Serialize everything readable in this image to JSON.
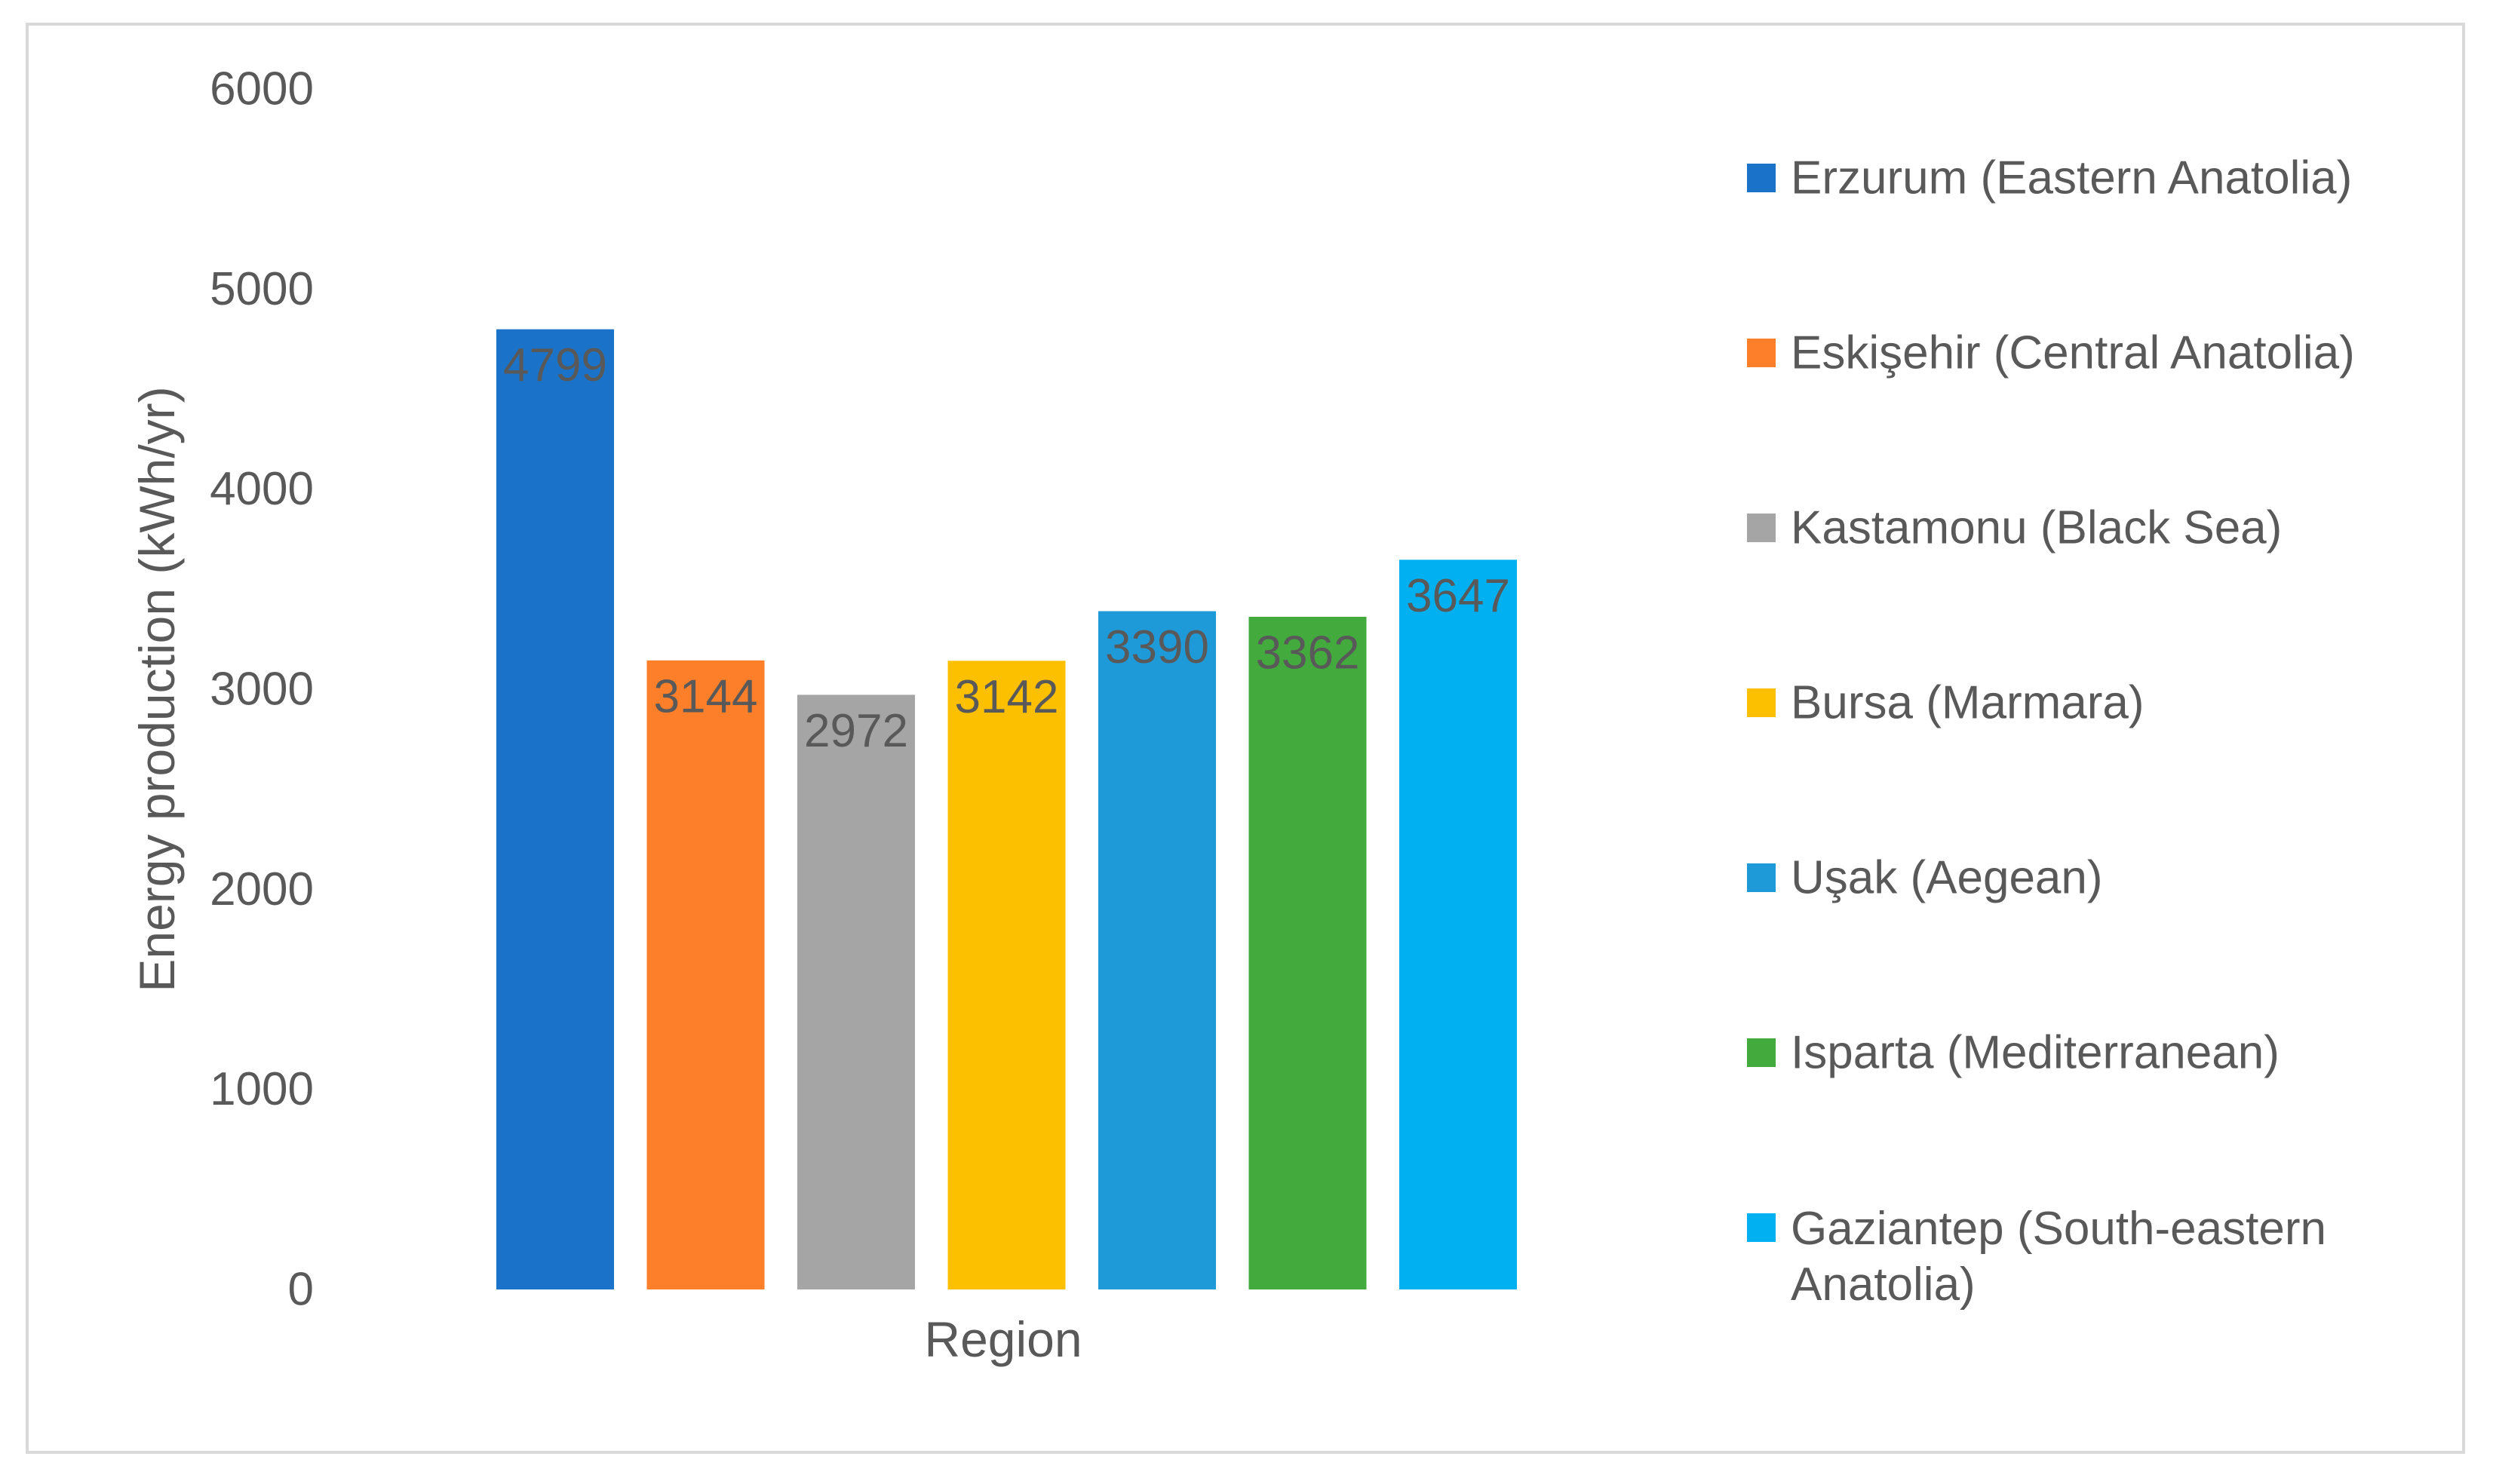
{
  "chart_data": {
    "type": "bar",
    "title": "",
    "xlabel": "Region",
    "ylabel": "Energy production (kWh/yr)",
    "ylim": [
      0,
      6000
    ],
    "yticks": [
      0,
      1000,
      2000,
      3000,
      4000,
      5000,
      6000
    ],
    "grid": false,
    "legend_position": "right",
    "series": [
      {
        "name": "Erzurum (Eastern Anatolia)",
        "value": 4799,
        "color": "#1a73c8"
      },
      {
        "name": "Eskişehir (Central Anatolia)",
        "value": 3144,
        "color": "#fd7f2a"
      },
      {
        "name": "Kastamonu (Black Sea)",
        "value": 2972,
        "color": "#a5a5a5"
      },
      {
        "name": "Bursa (Marmara)",
        "value": 3142,
        "color": "#fdc000"
      },
      {
        "name": "Uşak (Aegean)",
        "value": 3390,
        "color": "#1f9ad9"
      },
      {
        "name": "Isparta (Mediterranean)",
        "value": 3362,
        "color": "#43ab3d"
      },
      {
        "name": "Gaziantep (South-eastern Anatolia)",
        "value": 3647,
        "color": "#00b0f0"
      }
    ]
  },
  "style": {
    "axis_text_color": "#595959",
    "label_color": "#595959"
  }
}
